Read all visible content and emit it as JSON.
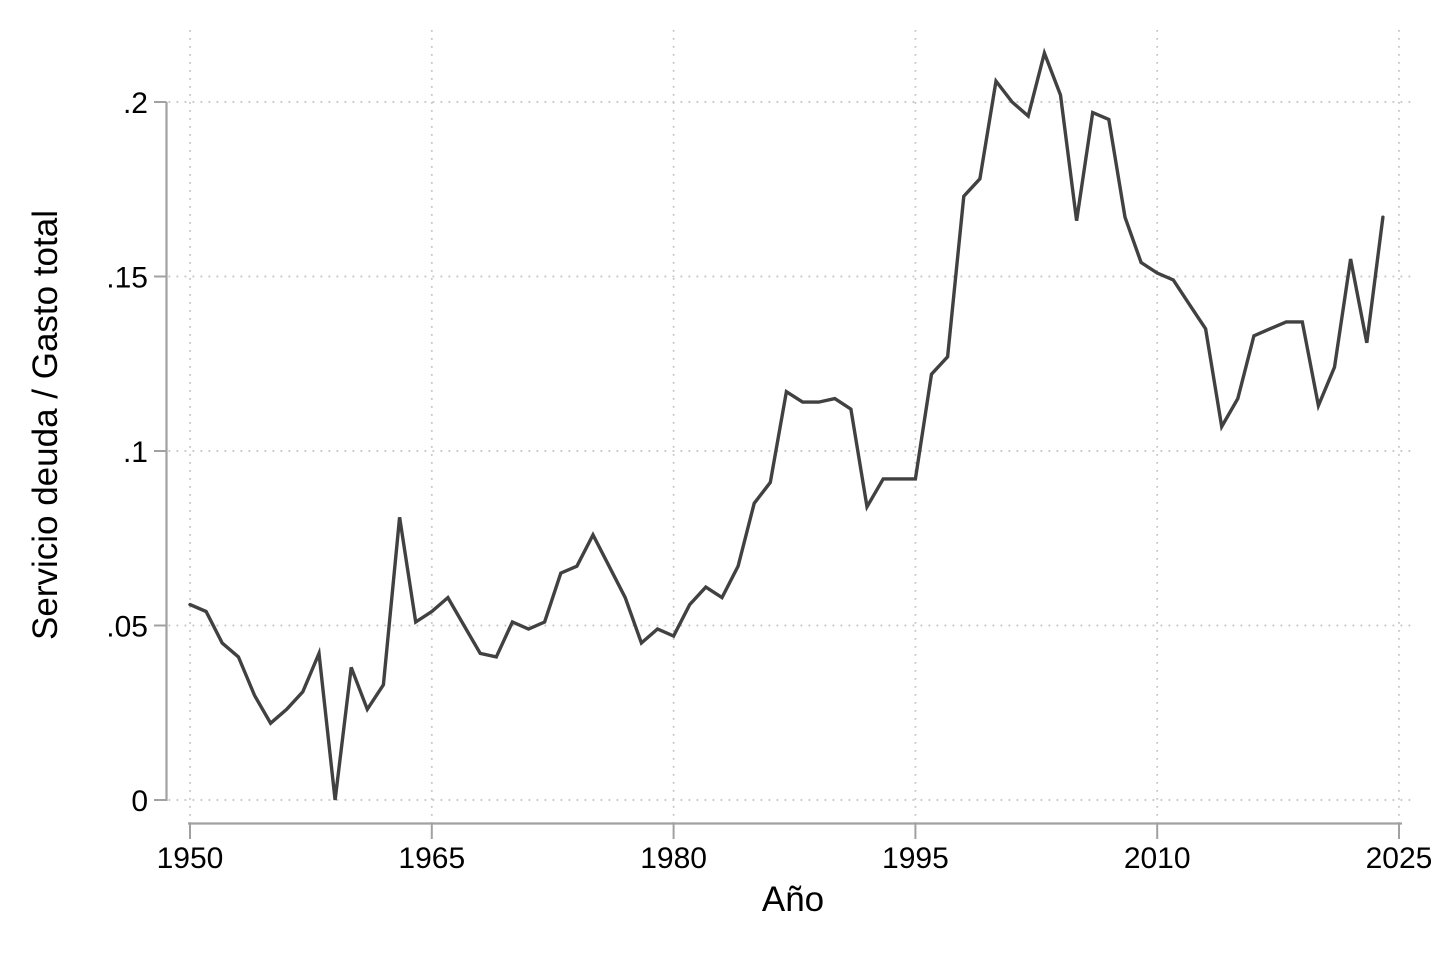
{
  "chart_data": {
    "type": "line",
    "title": "",
    "xlabel": "Año",
    "ylabel": "Servicio deuda / Gasto total",
    "legend": "none",
    "grid": "dotted gridlines on both axes",
    "xlim": [
      1948.5,
      2025.8
    ],
    "ylim": [
      0,
      0.22
    ],
    "x_ticks": {
      "values": [
        1950,
        1965,
        1980,
        1995,
        2010,
        2025
      ],
      "labels": [
        "1950",
        "1965",
        "1980",
        "1995",
        "2010",
        "2025"
      ]
    },
    "y_ticks": {
      "values": [
        0,
        0.05,
        0.1,
        0.15,
        0.2
      ],
      "labels": [
        "0",
        ".05",
        ".1",
        ".15",
        ".2"
      ]
    },
    "series": [
      {
        "name": "Servicio deuda / Gasto total",
        "x": [
          1950,
          1951,
          1952,
          1953,
          1954,
          1955,
          1956,
          1957,
          1958,
          1959,
          1960,
          1961,
          1962,
          1963,
          1964,
          1965,
          1966,
          1967,
          1968,
          1969,
          1970,
          1971,
          1972,
          1973,
          1974,
          1975,
          1976,
          1977,
          1978,
          1979,
          1980,
          1981,
          1982,
          1983,
          1984,
          1985,
          1986,
          1987,
          1988,
          1989,
          1990,
          1991,
          1992,
          1993,
          1994,
          1995,
          1996,
          1997,
          1998,
          1999,
          2000,
          2001,
          2002,
          2003,
          2004,
          2005,
          2006,
          2007,
          2008,
          2009,
          2010,
          2011,
          2012,
          2013,
          2014,
          2015,
          2016,
          2017,
          2018,
          2019,
          2020,
          2021,
          2022,
          2023,
          2024
        ],
        "values": [
          0.056,
          0.054,
          0.045,
          0.041,
          0.03,
          0.022,
          0.026,
          0.031,
          0.042,
          0.0,
          0.038,
          0.026,
          0.033,
          0.081,
          0.051,
          0.054,
          0.058,
          0.05,
          0.042,
          0.041,
          0.051,
          0.049,
          0.051,
          0.065,
          0.067,
          0.076,
          0.067,
          0.058,
          0.045,
          0.049,
          0.047,
          0.056,
          0.061,
          0.058,
          0.067,
          0.085,
          0.091,
          0.117,
          0.114,
          0.114,
          0.115,
          0.112,
          0.084,
          0.092,
          0.092,
          0.092,
          0.122,
          0.127,
          0.173,
          0.178,
          0.206,
          0.2,
          0.196,
          0.214,
          0.202,
          0.166,
          0.197,
          0.195,
          0.167,
          0.154,
          0.151,
          0.149,
          0.142,
          0.135,
          0.107,
          0.115,
          0.133,
          0.135,
          0.137,
          0.137,
          0.113,
          0.124,
          0.155,
          0.131,
          0.167
        ]
      }
    ],
    "colors": {
      "line": "#414141",
      "axis": "#a1a1a1",
      "grid": "#c3c3c3",
      "text": "#000000",
      "background": "#ffffff"
    }
  }
}
